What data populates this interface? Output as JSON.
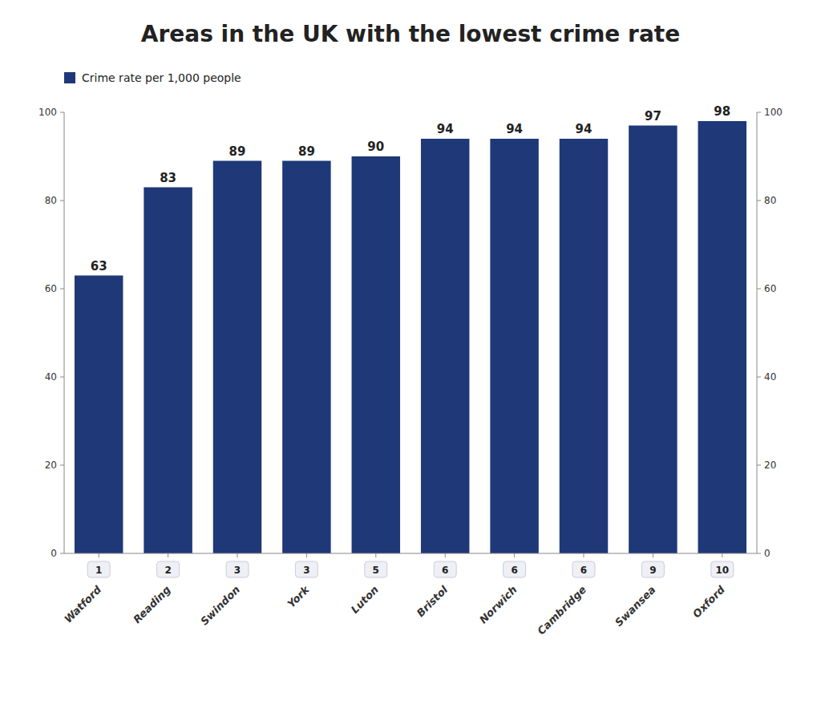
{
  "chart_data": {
    "type": "bar",
    "title": "Areas in the UK with the lowest crime rate",
    "categories": [
      "Watford",
      "Reading",
      "Swindon",
      "York",
      "Luton",
      "Bristol",
      "Norwich",
      "Cambridge",
      "Swansea",
      "Oxford"
    ],
    "ranks": [
      "1",
      "2",
      "3",
      "3",
      "5",
      "6",
      "6",
      "6",
      "9",
      "10"
    ],
    "series": [
      {
        "name": "Crime rate per 1,000 people",
        "color": "#1e3878",
        "values": [
          63,
          83,
          89,
          89,
          90,
          94,
          94,
          94,
          97,
          98
        ]
      }
    ],
    "ylim": [
      0,
      100
    ],
    "yticks": [
      0,
      20,
      40,
      60,
      80,
      100
    ],
    "y2lim": [
      0,
      100
    ],
    "y2ticks": [
      0,
      20,
      40,
      60,
      80,
      100
    ],
    "grid": false,
    "legend": "upper left",
    "data_labels": true
  }
}
